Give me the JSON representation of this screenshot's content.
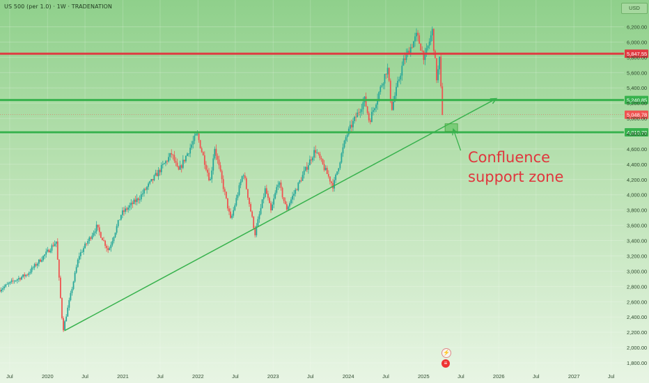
{
  "header": {
    "symbol_line": "US 500 (per 1.0) · 1W · TRADENATION",
    "currency": "USD"
  },
  "annotation": {
    "line1": "Confluence",
    "line2": "support zone"
  },
  "events": {
    "flash_icon": "lightning-icon",
    "flag_icon": "us-flag-icon"
  },
  "chart_data": {
    "type": "candlestick",
    "title": "US 500 (per 1.0) · 1W · TRADENATION",
    "colors": {
      "up": "#26a69a",
      "down": "#ef5350",
      "support": "#37b24d",
      "resistance": "#e03a41",
      "annotation": "#e0363d"
    },
    "y_axis": {
      "range": [
        1700,
        6350
      ],
      "ticks": [
        1800,
        2000,
        2200,
        2400,
        2600,
        2800,
        3000,
        3200,
        3400,
        3600,
        3800,
        4000,
        4200,
        4400,
        4600,
        4800,
        5000,
        5200,
        5400,
        5600,
        5800,
        6000,
        6200
      ],
      "tick_labels": [
        "1,800.00",
        "2,000.00",
        "2,200.00",
        "2,400.00",
        "2,600.00",
        "2,800.00",
        "3,000.00",
        "3,200.00",
        "3,400.00",
        "3,600.00",
        "3,800.00",
        "4,000.00",
        "4,200.00",
        "4,400.00",
        "4,600.00",
        "4,800.00",
        "5,000.00",
        "5,200.00",
        "5,400.00",
        "5,600.00",
        "5,800.00",
        "6,000.00",
        "6,200.00"
      ]
    },
    "x_axis": {
      "range": [
        "2019-05-15",
        "2027-09-01"
      ],
      "ticks": [
        "2019-07-01",
        "2020-01-01",
        "2020-07-01",
        "2021-01-01",
        "2021-07-01",
        "2022-01-01",
        "2022-07-01",
        "2023-01-01",
        "2023-07-01",
        "2024-01-01",
        "2024-07-01",
        "2025-01-01",
        "2025-07-01",
        "2026-01-01",
        "2026-07-01",
        "2027-01-01",
        "2027-07-01"
      ],
      "tick_labels": [
        "Jul",
        "2020",
        "Jul",
        "2021",
        "Jul",
        "2022",
        "Jul",
        "2023",
        "Jul",
        "2024",
        "Jul",
        "2025",
        "Jul",
        "2026",
        "Jul",
        "2027",
        "Jul"
      ]
    },
    "price_path": [
      [
        "2019-05-15",
        2750
      ],
      [
        "2019-08-01",
        2880
      ],
      [
        "2019-10-01",
        2960
      ],
      [
        "2019-12-31",
        3230
      ],
      [
        "2020-02-19",
        3390
      ],
      [
        "2020-03-23",
        2220
      ],
      [
        "2020-06-08",
        3200
      ],
      [
        "2020-09-02",
        3580
      ],
      [
        "2020-10-30",
        3270
      ],
      [
        "2020-12-31",
        3750
      ],
      [
        "2021-03-31",
        3970
      ],
      [
        "2021-06-30",
        4300
      ],
      [
        "2021-09-02",
        4540
      ],
      [
        "2021-10-04",
        4300
      ],
      [
        "2022-01-03",
        4800
      ],
      [
        "2022-03-08",
        4170
      ],
      [
        "2022-03-29",
        4630
      ],
      [
        "2022-06-16",
        3660
      ],
      [
        "2022-08-16",
        4300
      ],
      [
        "2022-10-12",
        3490
      ],
      [
        "2022-12-01",
        4080
      ],
      [
        "2022-12-28",
        3780
      ],
      [
        "2023-02-02",
        4180
      ],
      [
        "2023-03-13",
        3810
      ],
      [
        "2023-07-31",
        4590
      ],
      [
        "2023-10-27",
        4110
      ],
      [
        "2023-12-29",
        4770
      ],
      [
        "2024-03-28",
        5250
      ],
      [
        "2024-04-19",
        4960
      ],
      [
        "2024-07-16",
        5670
      ],
      [
        "2024-08-05",
        5120
      ],
      [
        "2024-10-01",
        5740
      ],
      [
        "2024-12-06",
        6090
      ],
      [
        "2025-01-13",
        5780
      ],
      [
        "2025-02-19",
        6147
      ],
      [
        "2025-03-13",
        5500
      ],
      [
        "2025-03-26",
        5770
      ],
      [
        "2025-04-08",
        5048.78
      ]
    ],
    "horizontal_levels": [
      {
        "name": "resistance",
        "price": 5847.55,
        "label": "5,847.55",
        "color": "#e03a41"
      },
      {
        "name": "support",
        "price": 5240.85,
        "label": "5,240.85",
        "color": "#37b24d"
      },
      {
        "name": "support",
        "price": 4818.78,
        "label": "4,818.78",
        "color": "#37b24d"
      }
    ],
    "current_price": {
      "price": 5048.78,
      "label": "5,048.78",
      "color": "#ef5350"
    },
    "trendline": {
      "from": [
        "2020-03-23",
        2220
      ],
      "to": [
        "2025-12-20",
        5260
      ]
    },
    "zone": {
      "from": [
        "2025-04-15",
        4830
      ],
      "to": [
        "2025-06-15",
        4930
      ]
    },
    "arrow": {
      "from": [
        "2025-06-30",
        4580
      ],
      "to": [
        "2025-05-25",
        4860
      ]
    }
  }
}
